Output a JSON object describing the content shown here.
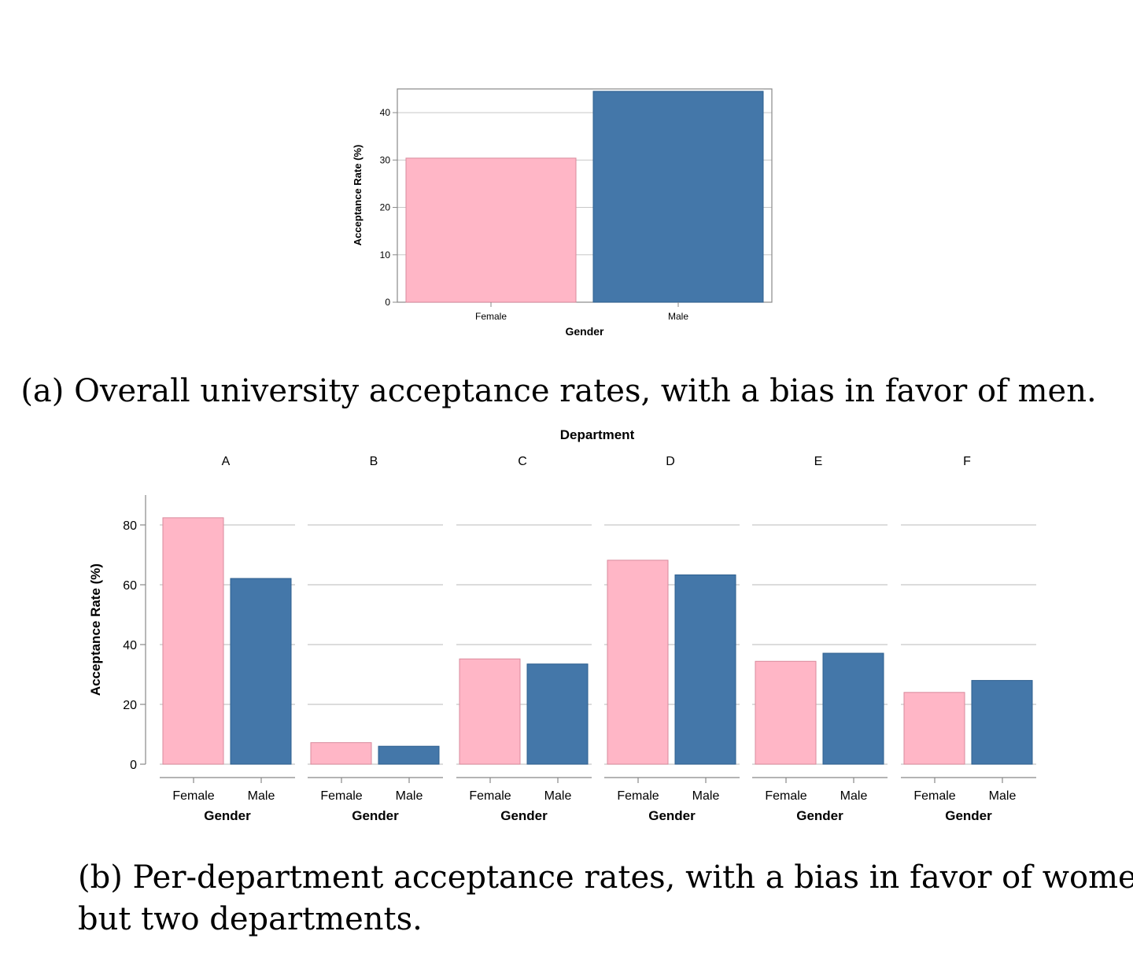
{
  "colors": {
    "female": "#FFB6C6",
    "male": "#4477A9",
    "grid": "#c8c8c8",
    "axis": "#888888"
  },
  "captions": {
    "a": "(a) Overall university acceptance rates, with a bias in favor of men.",
    "b_line1": "(b) Per-department acceptance rates, with a bias in favor of women in all",
    "b_line2": "but two departments."
  },
  "chart_data": [
    {
      "type": "bar",
      "title": "",
      "xlabel": "Gender",
      "ylabel": "Acceptance Rate  (%)",
      "categories": [
        "Female",
        "Male"
      ],
      "values": [
        30.4,
        44.5
      ],
      "ylim": [
        0,
        45
      ],
      "yticks": [
        0,
        10,
        20,
        30,
        40
      ],
      "grid": true
    },
    {
      "type": "bar",
      "facet_label": "Department",
      "xlabel": "Gender",
      "ylabel": "Acceptance Rate  (%)",
      "categories": [
        "Female",
        "Male"
      ],
      "ylim": [
        0,
        90
      ],
      "yticks": [
        0,
        20,
        40,
        60,
        80
      ],
      "grid": true,
      "facets": [
        {
          "name": "A",
          "values": [
            82.4,
            62.1
          ]
        },
        {
          "name": "B",
          "values": [
            7.2,
            6.0
          ]
        },
        {
          "name": "C",
          "values": [
            35.2,
            33.5
          ]
        },
        {
          "name": "D",
          "values": [
            68.2,
            63.3
          ]
        },
        {
          "name": "E",
          "values": [
            34.4,
            37.1
          ]
        },
        {
          "name": "F",
          "values": [
            24.0,
            28.0
          ]
        }
      ]
    }
  ]
}
